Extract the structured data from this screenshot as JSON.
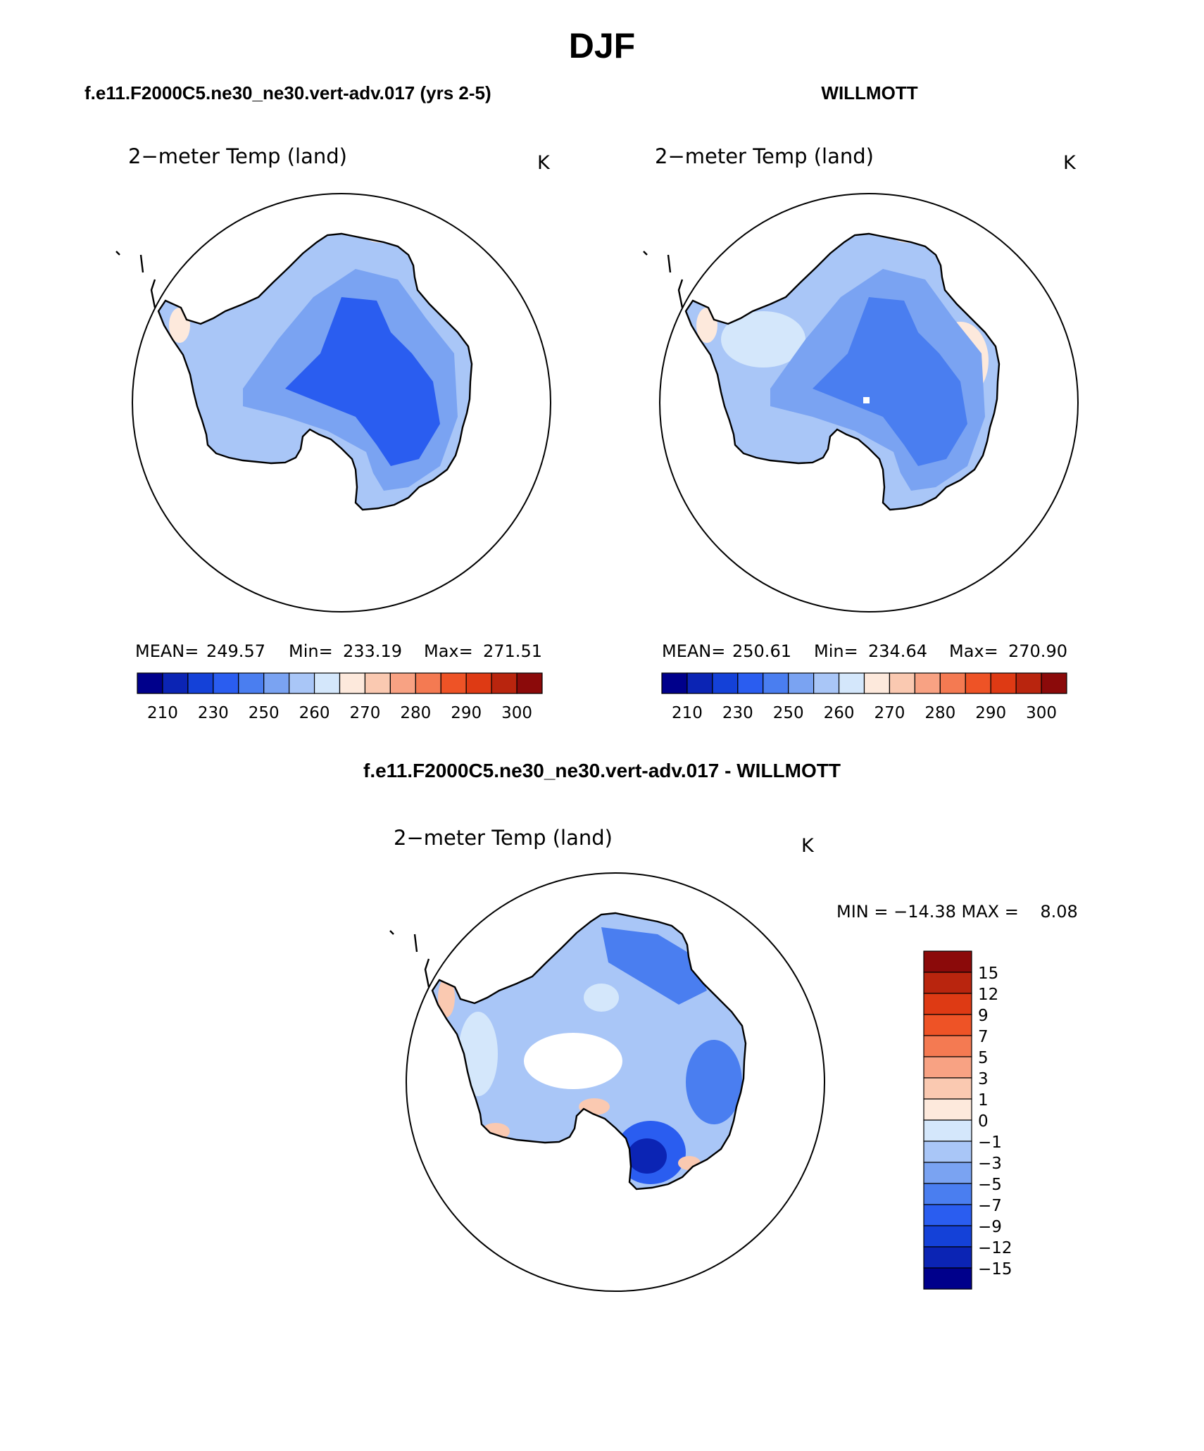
{
  "page_title": "DJF",
  "palette": [
    "#00008b",
    "#0b24b4",
    "#1441d8",
    "#2a5df0",
    "#4a7ef0",
    "#7aa3f2",
    "#a9c6f7",
    "#d4e7fb",
    "#fde9dc",
    "#fac9b1",
    "#f8a283",
    "#f47a52",
    "#ee5326",
    "#de3a14",
    "#b9250e",
    "#8b0a0a"
  ],
  "panels": [
    {
      "case_title": "f.e11.F2000C5.ne30_ne30.vert-adv.017 (yrs 2-5)",
      "variable": "2−meter Temp (land)",
      "units": "K",
      "stats": {
        "mean_label": "MEAN=",
        "mean": "249.57",
        "min_label": "Min=",
        "min": "233.19",
        "max_label": "Max=",
        "max": "271.51"
      },
      "colorbar_ticks": [
        "210",
        "230",
        "250",
        "260",
        "270",
        "280",
        "290",
        "300"
      ],
      "field": "model"
    },
    {
      "case_title": "WILLMOTT",
      "variable": "2−meter Temp (land)",
      "units": "K",
      "stats": {
        "mean_label": "MEAN=",
        "mean": "250.61",
        "min_label": "Min=",
        "min": "234.64",
        "max_label": "Max=",
        "max": "270.90"
      },
      "colorbar_ticks": [
        "210",
        "230",
        "250",
        "260",
        "270",
        "280",
        "290",
        "300"
      ],
      "field": "obs"
    }
  ],
  "diff_panel": {
    "case_title": "f.e11.F2000C5.ne30_ne30.vert-adv.017 - WILLMOTT",
    "variable": "2−meter Temp (land)",
    "units": "K",
    "minmax_text": "MIN = −14.38 MAX =    8.08",
    "colorbar_ticks": [
      "15",
      "12",
      "9",
      "7",
      "5",
      "3",
      "1",
      "0",
      "−1",
      "−3",
      "−5",
      "−7",
      "−9",
      "−12",
      "−15"
    ]
  }
}
